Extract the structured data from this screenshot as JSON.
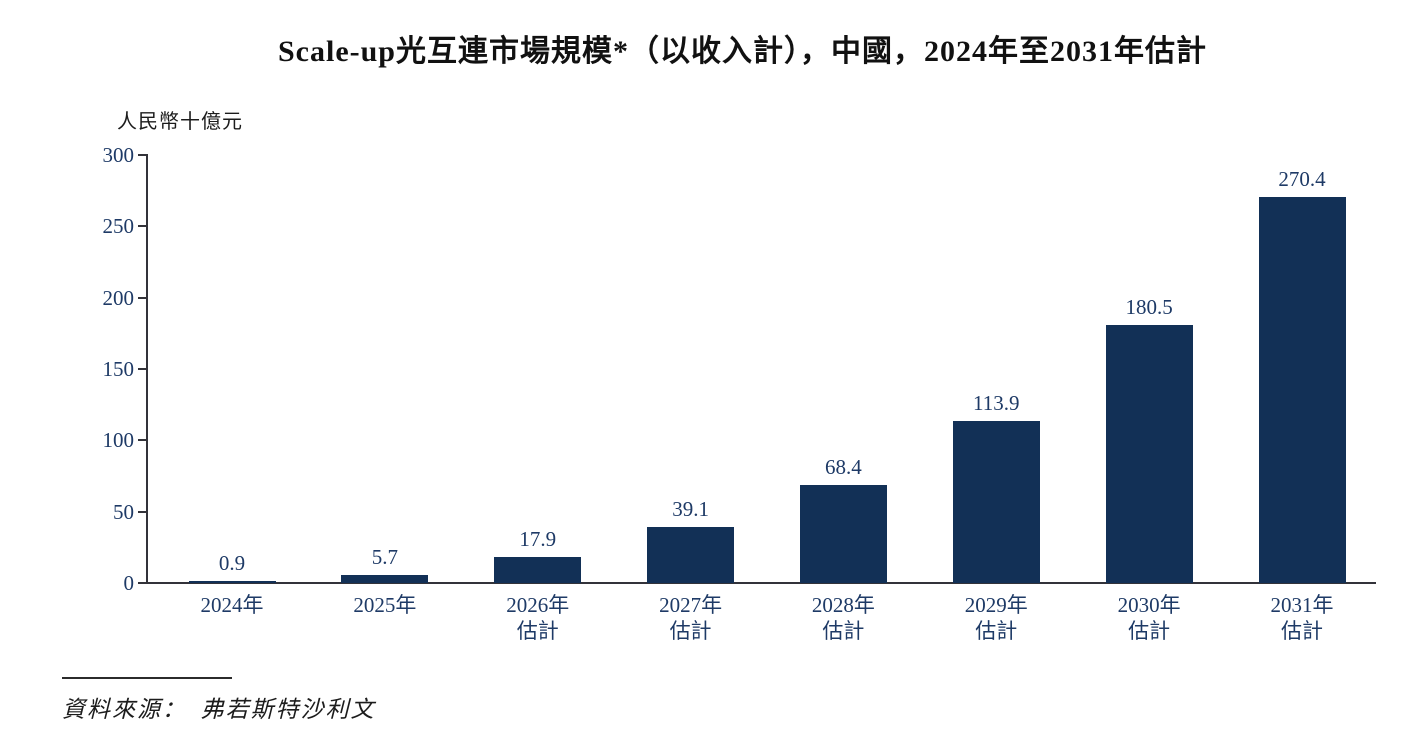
{
  "title": "Scale-up光互連市場規模*（以收入計），中國，2024年至2031年估計",
  "y_axis": {
    "unit_label": "人民幣十億元",
    "ticks": [
      0,
      50,
      100,
      150,
      200,
      250,
      300
    ]
  },
  "source": {
    "text": "資料來源：　弗若斯特沙利文"
  },
  "colors": {
    "bar": "#123056",
    "value_label": "#1e3a66",
    "axis": "#33333a",
    "title_text": "#111111"
  },
  "chart_data": {
    "type": "bar",
    "categories": [
      "2024年",
      "2025年",
      "2026年 估計",
      "2027年 估計",
      "2028年 估計",
      "2029年 估計",
      "2030年 估計",
      "2031年 估計"
    ],
    "category_lines": [
      [
        "2024年"
      ],
      [
        "2025年"
      ],
      [
        "2026年",
        "估計"
      ],
      [
        "2027年",
        "估計"
      ],
      [
        "2028年",
        "估計"
      ],
      [
        "2029年",
        "估計"
      ],
      [
        "2030年",
        "估計"
      ],
      [
        "2031年",
        "估計"
      ]
    ],
    "values": [
      0.9,
      5.7,
      17.9,
      39.1,
      68.4,
      113.9,
      180.5,
      270.4
    ],
    "title": "Scale-up光互連市場規模*（以收入計），中國，2024年至2031年估計",
    "xlabel": "",
    "ylabel": "人民幣十億元",
    "ylim": [
      0,
      300
    ],
    "yticks": [
      0,
      50,
      100,
      150,
      200,
      250,
      300
    ],
    "grid": false,
    "legend": null,
    "bar_color": "#123056",
    "value_labels_shown": true
  }
}
